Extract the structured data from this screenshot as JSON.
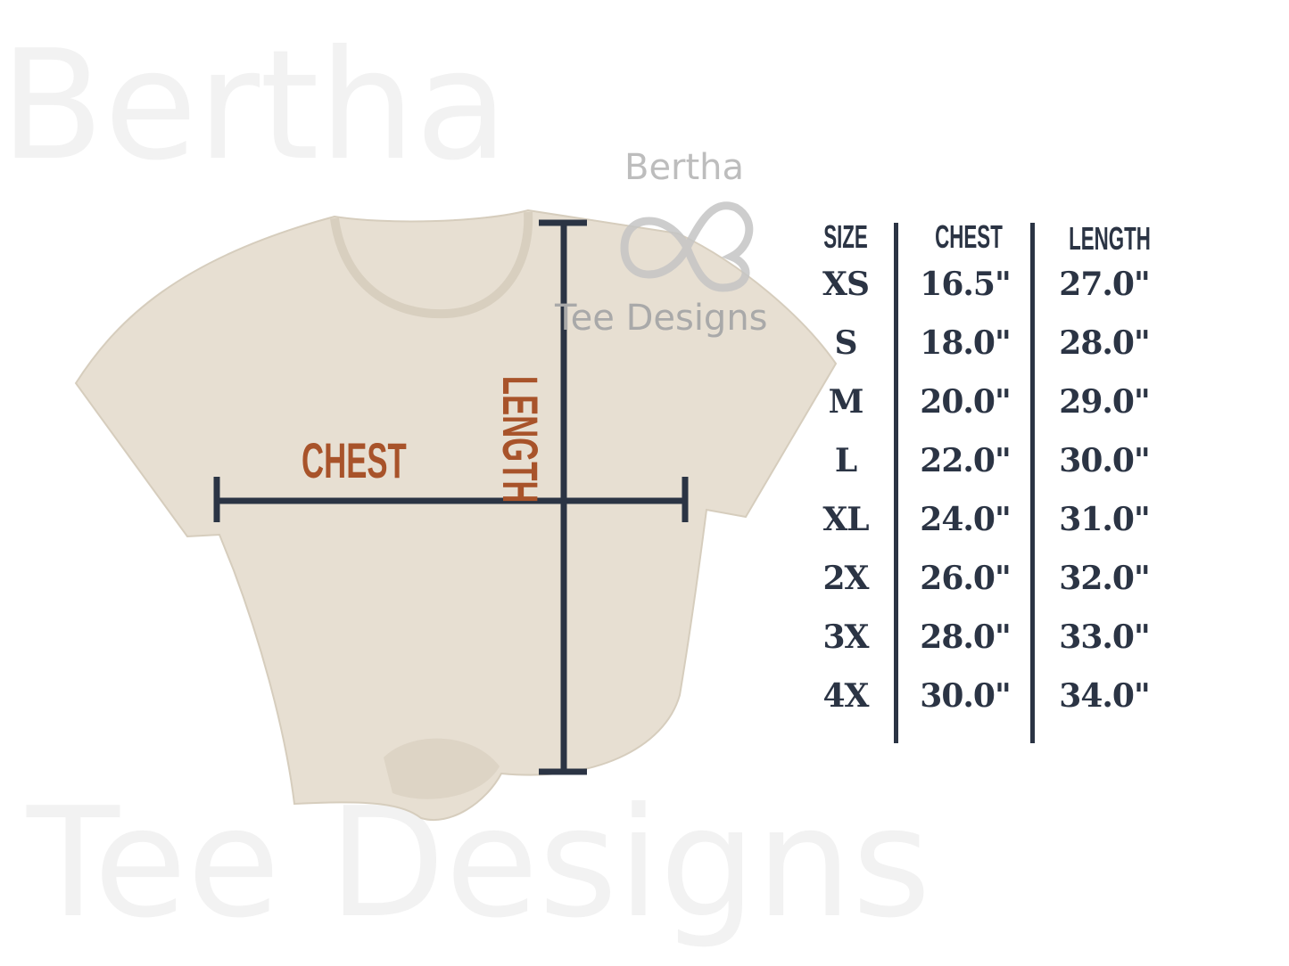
{
  "watermark": {
    "top_text": "Bertha",
    "bottom_text": "Tee Designs",
    "logo_icon": "heart-infinity-logo"
  },
  "shirt": {
    "chest_label": "CHEST",
    "length_label": "LENGTH",
    "label_color": "#a8532a",
    "line_color": "#2b3444",
    "shirt_color": "#e7dfd2"
  },
  "table": {
    "headers": [
      "SIZE",
      "CHEST",
      "LENGTH"
    ],
    "rows": [
      {
        "size": "XS",
        "chest": "16.5\"",
        "length": "27.0\""
      },
      {
        "size": "S",
        "chest": "18.0\"",
        "length": "28.0\""
      },
      {
        "size": "M",
        "chest": "20.0\"",
        "length": "29.0\""
      },
      {
        "size": "L",
        "chest": "22.0\"",
        "length": "30.0\""
      },
      {
        "size": "XL",
        "chest": "24.0\"",
        "length": "31.0\""
      },
      {
        "size": "2X",
        "chest": "26.0\"",
        "length": "32.0\""
      },
      {
        "size": "3X",
        "chest": "28.0\"",
        "length": "33.0\""
      },
      {
        "size": "4X",
        "chest": "30.0\"",
        "length": "34.0\""
      }
    ]
  }
}
